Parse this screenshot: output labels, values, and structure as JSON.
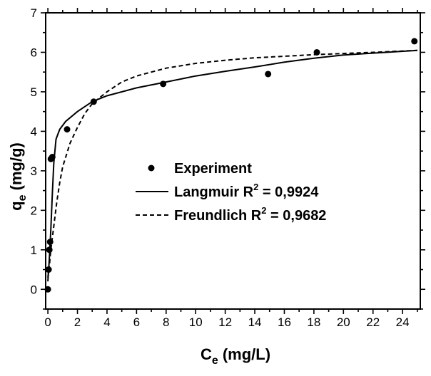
{
  "chart_data": {
    "type": "scatter",
    "xlabel": {
      "main": "C",
      "sub": "e",
      "unit": " (mg/L)"
    },
    "ylabel": {
      "main": "q",
      "sub": "e",
      "unit": " (mg/g)"
    },
    "xlim": [
      -0.15,
      25.2
    ],
    "ylim": [
      -0.5,
      7
    ],
    "xticks": [
      0,
      2,
      4,
      6,
      8,
      10,
      12,
      14,
      16,
      18,
      20,
      22,
      24
    ],
    "yticks": [
      0,
      1,
      2,
      3,
      4,
      5,
      6,
      7
    ],
    "grid": false,
    "legend_position": "center-left",
    "series": [
      {
        "name": "Experiment",
        "kind": "points",
        "x": [
          0.0,
          0.05,
          0.1,
          0.15,
          0.2,
          0.3,
          1.3,
          3.1,
          7.8,
          14.9,
          18.2,
          24.8
        ],
        "y": [
          0.0,
          0.5,
          1.0,
          1.2,
          3.3,
          3.35,
          4.05,
          4.75,
          5.2,
          5.45,
          6.0,
          6.28
        ]
      },
      {
        "name": "Langmuir",
        "label_main": "Langmuir R",
        "label_sup": "2",
        "label_value": " = 0,9924",
        "kind": "solid",
        "x": [
          0.0,
          0.1,
          0.2,
          0.3,
          0.4,
          0.55,
          0.8,
          1.2,
          2.0,
          3.0,
          4.0,
          6.0,
          8.0,
          10.0,
          12.0,
          14.0,
          16.0,
          18.0,
          20.0,
          22.0,
          25.0
        ],
        "y": [
          0.2,
          0.8,
          1.5,
          2.4,
          3.2,
          3.8,
          4.05,
          4.25,
          4.5,
          4.75,
          4.9,
          5.1,
          5.25,
          5.4,
          5.52,
          5.63,
          5.75,
          5.85,
          5.93,
          5.98,
          6.05
        ]
      },
      {
        "name": "Freundlich",
        "label_main": "Freundlich R",
        "label_sup": "2",
        "label_value": " = 0,9682",
        "kind": "dashed",
        "x": [
          0.0,
          0.1,
          0.2,
          0.4,
          0.6,
          0.8,
          1.0,
          1.5,
          2.0,
          2.5,
          3.0,
          4.0,
          5.0,
          6.0,
          8.0,
          10.0,
          12.0,
          14.0,
          16.0,
          18.0,
          20.0,
          22.0,
          25.0
        ],
        "y": [
          0.3,
          0.6,
          1.0,
          1.6,
          2.2,
          2.7,
          3.1,
          3.7,
          4.1,
          4.45,
          4.7,
          5.0,
          5.25,
          5.4,
          5.6,
          5.72,
          5.8,
          5.86,
          5.9,
          5.94,
          5.97,
          6.0,
          6.05
        ]
      }
    ]
  }
}
